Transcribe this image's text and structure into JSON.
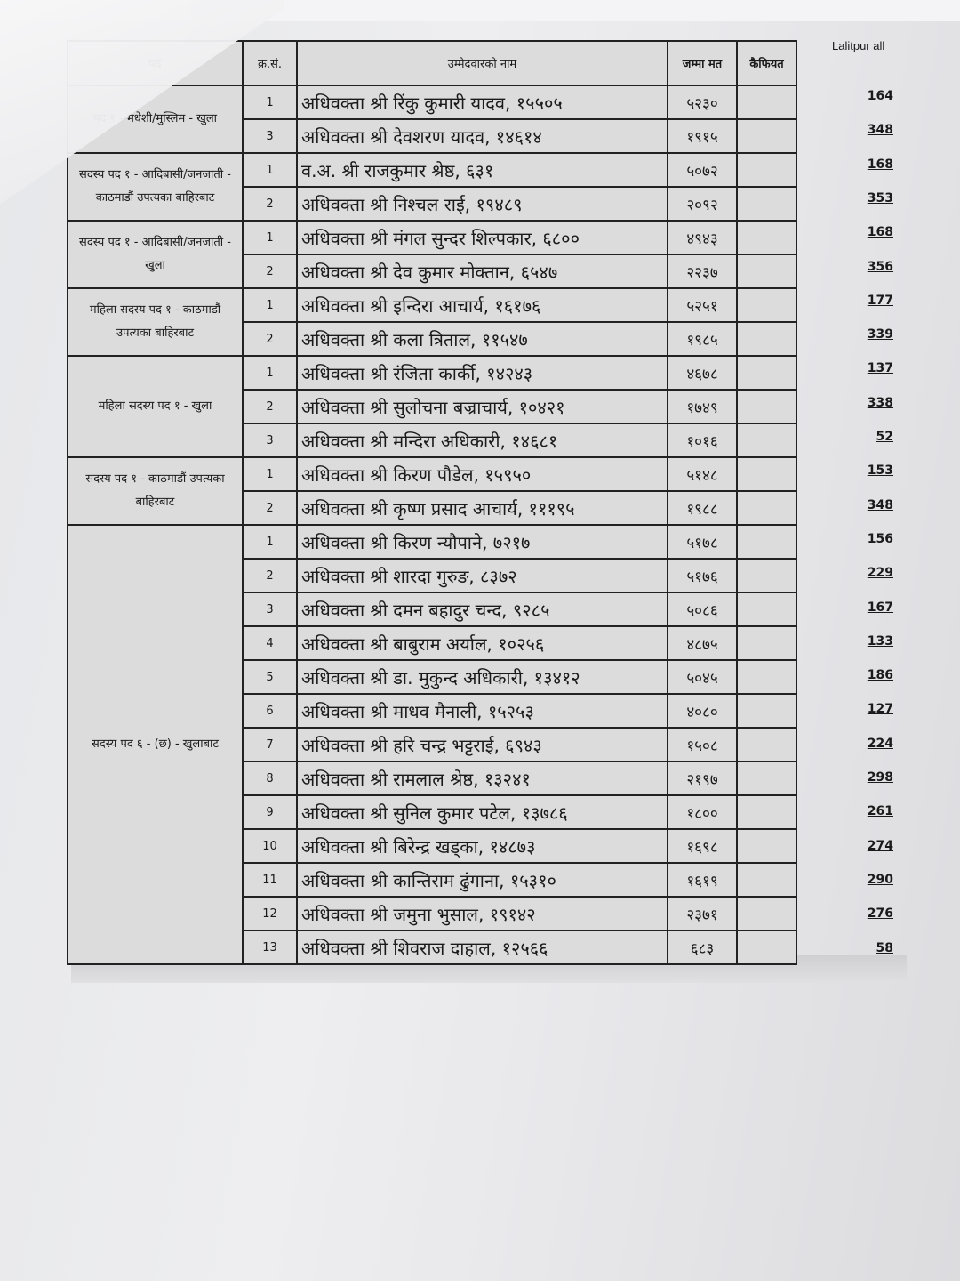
{
  "header": {
    "group": "पद",
    "sn": "क्र.सं.",
    "name": "उम्मेदवारको नाम",
    "votes": "जम्मा मत",
    "remarks": "कैफियत"
  },
  "side_title": "Lalitpur all",
  "groups": [
    {
      "label": "पद १ - मधेशी/मुस्लिम - खुला",
      "rows": [
        {
          "sn": "1",
          "name": "अधिवक्ता श्री रिंकु कुमारी यादव, १५५०५",
          "votes": "५२३०",
          "lalitpur": "164"
        },
        {
          "sn": "3",
          "name": "अधिवक्ता श्री देवशरण यादव, १४६१४",
          "votes": "१९१५",
          "lalitpur": "348"
        }
      ]
    },
    {
      "label": "सदस्य पद १ - आदिबासी/जनजाती - काठमाडौं उपत्यका बाहिरबाट",
      "rows": [
        {
          "sn": "1",
          "name": "व.अ. श्री राजकुमार श्रेष्ठ, ६३१",
          "votes": "५०७२",
          "lalitpur": "168"
        },
        {
          "sn": "2",
          "name": "अधिवक्ता श्री निश्चल राई, १९४८९",
          "votes": "२०९२",
          "lalitpur": "353"
        }
      ]
    },
    {
      "label": "सदस्य पद १ - आदिबासी/जनजाती - खुला",
      "rows": [
        {
          "sn": "1",
          "name": "अधिवक्ता श्री मंगल सुन्दर शिल्पकार, ६८००",
          "votes": "४९४३",
          "lalitpur": "168"
        },
        {
          "sn": "2",
          "name": "अधिवक्ता श्री देव कुमार मोक्तान, ६५४७",
          "votes": "२२३७",
          "lalitpur": "356"
        }
      ]
    },
    {
      "label": "महिला सदस्य पद १ - काठमाडौं उपत्यका बाहिरबाट",
      "rows": [
        {
          "sn": "1",
          "name": "अधिवक्ता श्री इन्दिरा आचार्य,  १६१७६",
          "votes": "५२५१",
          "lalitpur": "177"
        },
        {
          "sn": "2",
          "name": "अधिवक्ता श्री कला त्रिताल, ११५४७",
          "votes": "१९८५",
          "lalitpur": "339"
        }
      ]
    },
    {
      "label": "महिला सदस्य पद १ - खुला",
      "rows": [
        {
          "sn": "1",
          "name": "अधिवक्ता श्री रंजिता कार्की, १४२४३",
          "votes": "४६७८",
          "lalitpur": "137"
        },
        {
          "sn": "2",
          "name": "अधिवक्ता श्री सुलोचना बज्राचार्य, १०४२१",
          "votes": "१७४९",
          "lalitpur": "338"
        },
        {
          "sn": "3",
          "name": "अधिवक्ता श्री मन्दिरा अधिकारी, १४६८१",
          "votes": "१०१६",
          "lalitpur": "52"
        }
      ]
    },
    {
      "label": "सदस्य पद १ - काठमाडौं उपत्यका बाहिरबाट",
      "rows": [
        {
          "sn": "1",
          "name": "अधिवक्ता श्री किरण पौडेल, १५९५०",
          "votes": "५१४८",
          "lalitpur": "153"
        },
        {
          "sn": "2",
          "name": "अधिवक्ता श्री कृष्ण प्रसाद आचार्य, १११९५",
          "votes": "१९८८",
          "lalitpur": "348"
        }
      ]
    },
    {
      "label": "सदस्य पद ६ - (छ) - खुलाबाट",
      "rows": [
        {
          "sn": "1",
          "name": "अधिवक्ता श्री किरण न्यौपाने, ७२१७",
          "votes": "५१७८",
          "lalitpur": "156"
        },
        {
          "sn": "2",
          "name": "अधिवक्ता श्री शारदा गुरुङ, ८३७२",
          "votes": "५१७६",
          "lalitpur": "229"
        },
        {
          "sn": "3",
          "name": "अधिवक्ता श्री दमन बहादुर चन्द, ९२८५",
          "votes": "५०८६",
          "lalitpur": "167"
        },
        {
          "sn": "4",
          "name": "अधिवक्ता श्री बाबुराम अर्याल, १०२५६",
          "votes": "४८७५",
          "lalitpur": "133"
        },
        {
          "sn": "5",
          "name": "अधिवक्ता श्री डा. मुकुन्द अधिकारी, १३४१२",
          "votes": "५०४५",
          "lalitpur": "186"
        },
        {
          "sn": "6",
          "name": "अधिवक्ता श्री माधव मैनाली, १५२५३",
          "votes": "४०८०",
          "lalitpur": "127"
        },
        {
          "sn": "7",
          "name": "अधिवक्ता श्री हरि चन्द्र भट्टराई, ६९४३",
          "votes": "१५०८",
          "lalitpur": "224"
        },
        {
          "sn": "8",
          "name": "अधिवक्ता श्री रामलाल श्रेष्ठ, १३२४१",
          "votes": "२१९७",
          "lalitpur": "298"
        },
        {
          "sn": "9",
          "name": "अधिवक्ता श्री सुनिल कुमार पटेल, १३७८६",
          "votes": "१८००",
          "lalitpur": "261"
        },
        {
          "sn": "10",
          "name": "अधिवक्ता श्री बिरेन्द्र खड्का, १४८७३",
          "votes": "१६९८",
          "lalitpur": "274"
        },
        {
          "sn": "11",
          "name": "अधिवक्ता श्री कान्तिराम ढुंगाना, १५३१०",
          "votes": "१६१९",
          "lalitpur": "290"
        },
        {
          "sn": "12",
          "name": "अधिवक्ता श्री जमुना भुसाल, १९१४२",
          "votes": "२३७१",
          "lalitpur": "276"
        },
        {
          "sn": "13",
          "name": "अधिवक्ता श्री शिवराज दाहाल, १२५६६",
          "votes": "६८३",
          "lalitpur": "58"
        }
      ]
    }
  ]
}
